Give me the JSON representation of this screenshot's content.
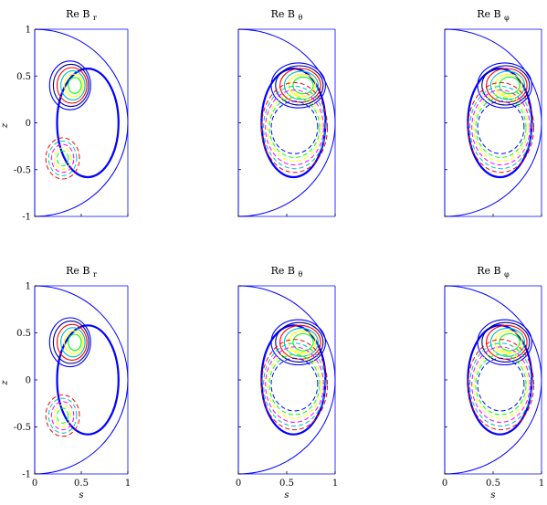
{
  "chart_data": [
    {
      "type": "contour",
      "title": "Re B",
      "title_sub": "r",
      "xlabel": "",
      "ylabel": "z",
      "xlim": [
        0,
        1
      ],
      "ylim": [
        -1,
        1
      ],
      "xticks": [],
      "yticks": [
        "-1",
        "-0.5",
        "0",
        "0.5",
        "1"
      ]
    },
    {
      "type": "contour",
      "title": "Re B",
      "title_sub": "θ",
      "xlabel": "",
      "ylabel": "",
      "xlim": [
        0,
        1
      ],
      "ylim": [
        -1,
        1
      ],
      "xticks": [],
      "yticks": []
    },
    {
      "type": "contour",
      "title": "Re B",
      "title_sub": "φ",
      "xlabel": "",
      "ylabel": "",
      "xlim": [
        0,
        1
      ],
      "ylim": [
        -1,
        1
      ],
      "xticks": [],
      "yticks": []
    },
    {
      "type": "contour",
      "title": "Re B",
      "title_sub": "r",
      "xlabel": "s",
      "ylabel": "z",
      "xlim": [
        0,
        1
      ],
      "ylim": [
        -1,
        1
      ],
      "xticks": [
        "0",
        "0.5",
        "1"
      ],
      "yticks": [
        "-1",
        "-0.5",
        "0",
        "0.5",
        "1"
      ]
    },
    {
      "type": "contour",
      "title": "Re B",
      "title_sub": "θ",
      "xlabel": "s",
      "ylabel": "",
      "xlim": [
        0,
        1
      ],
      "ylim": [
        -1,
        1
      ],
      "xticks": [
        "0",
        "0.5",
        "1"
      ],
      "yticks": []
    },
    {
      "type": "contour",
      "title": "Re B",
      "title_sub": "φ",
      "xlabel": "s",
      "ylabel": "",
      "xlim": [
        0,
        1
      ],
      "ylim": [
        -1,
        1
      ],
      "xticks": [
        "0",
        "0.5",
        "1"
      ],
      "yticks": []
    }
  ],
  "colors": {
    "boundary": "#0000ff",
    "solid_levels": [
      "#0000ff",
      "#00008b",
      "#ff0000",
      "#00bfbf",
      "#ffff00",
      "#00ff00"
    ],
    "dashed_levels": [
      "#ff0000",
      "#00bfbf",
      "#ff00ff",
      "#ffff00",
      "#00ff00",
      "#0000ff"
    ]
  }
}
